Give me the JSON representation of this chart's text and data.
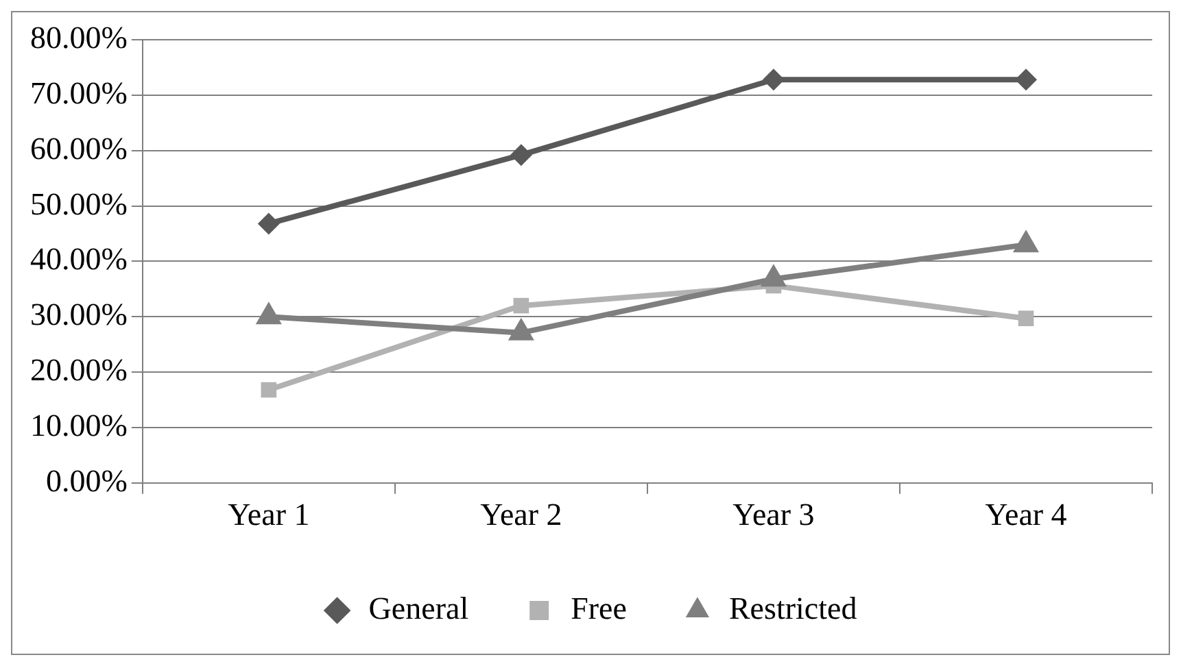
{
  "chart_data": {
    "type": "line",
    "categories": [
      "Year 1",
      "Year 2",
      "Year 3",
      "Year 4"
    ],
    "series": [
      {
        "name": "General",
        "color": "#595959",
        "marker": "diamond",
        "values": [
          46.8,
          59.2,
          72.8,
          72.8
        ]
      },
      {
        "name": "Free",
        "color": "#b2b2b2",
        "marker": "square",
        "values": [
          16.8,
          32.0,
          35.6,
          29.7
        ]
      },
      {
        "name": "Restricted",
        "color": "#7f7f7f",
        "marker": "triangle",
        "values": [
          30.0,
          27.1,
          36.8,
          43.0
        ]
      }
    ],
    "ylim": [
      0,
      80
    ],
    "yticks": [
      {
        "value": 0,
        "label": "0.00%"
      },
      {
        "value": 10,
        "label": "10.00%"
      },
      {
        "value": 20,
        "label": "20.00%"
      },
      {
        "value": 30,
        "label": "30.00%"
      },
      {
        "value": 40,
        "label": "40.00%"
      },
      {
        "value": 50,
        "label": "50.00%"
      },
      {
        "value": 60,
        "label": "60.00%"
      },
      {
        "value": 70,
        "label": "70.00%"
      },
      {
        "value": 80,
        "label": "80.00%"
      }
    ],
    "grid": "y",
    "legend": "bottom",
    "line_style": "solid"
  }
}
